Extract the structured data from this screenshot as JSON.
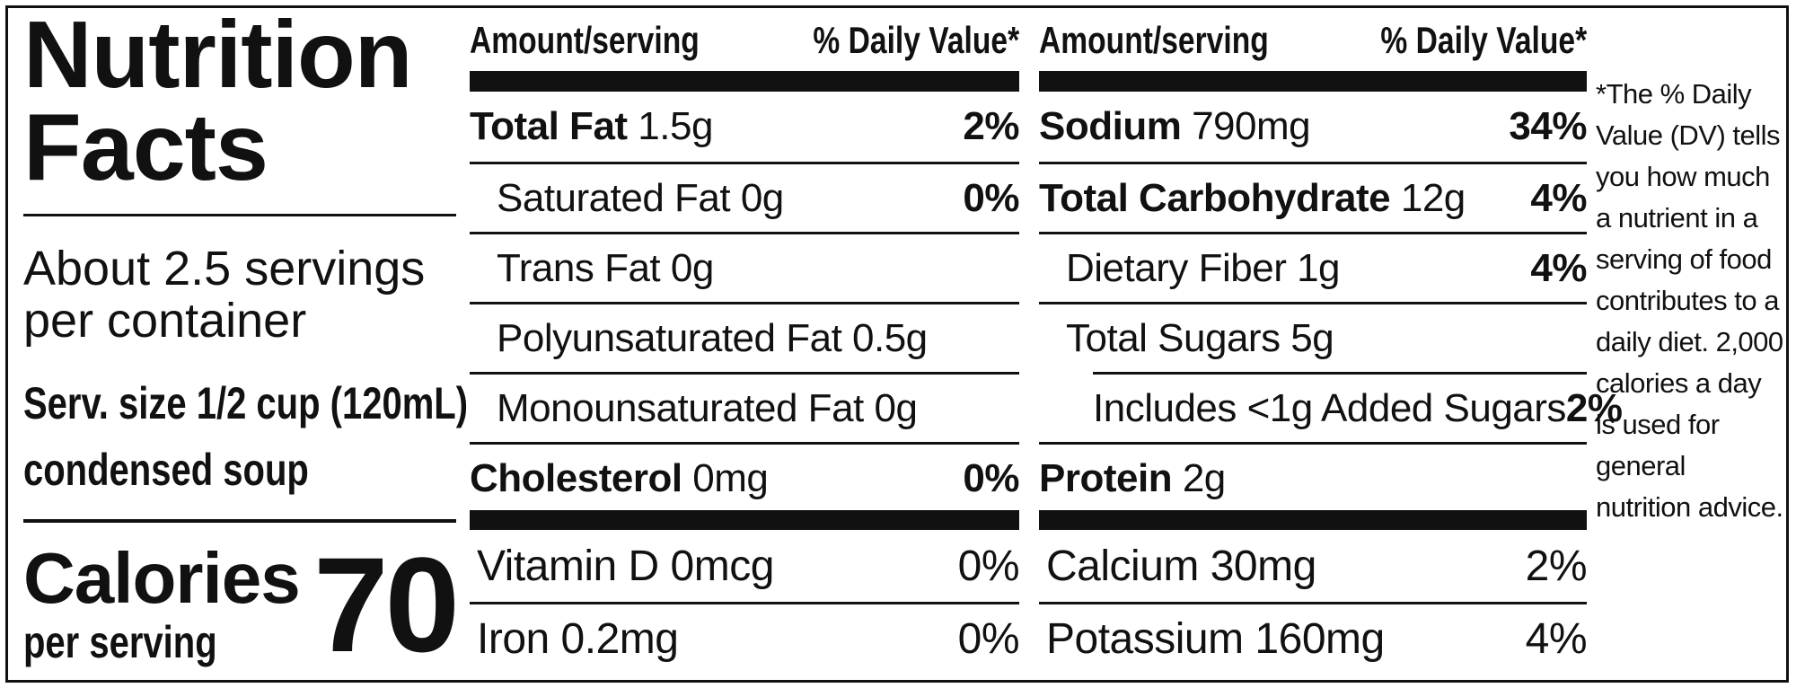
{
  "title": "Nutrition Facts",
  "servings": "About 2.5 servings per container",
  "serving_size": "Serv. size 1/2 cup (120mL)",
  "serving_note": "condensed soup",
  "calories_label": "Calories",
  "calories_sub": "per serving",
  "calories": "70",
  "header": {
    "amount": "Amount/serving",
    "dv": "% Daily Value*"
  },
  "left_rows": [
    {
      "name": "Total Fat",
      "amount": "1.5g",
      "dv": "2%",
      "bold": true,
      "indent": 0
    },
    {
      "name": "Saturated Fat 0g",
      "dv": "0%",
      "bold": false,
      "indent": 1
    },
    {
      "name": "Trans Fat 0g",
      "bold": false,
      "indent": 1
    },
    {
      "name": "Polyunsaturated Fat 0.5g",
      "bold": false,
      "indent": 1
    },
    {
      "name": "Monounsaturated Fat 0g",
      "bold": false,
      "indent": 1
    },
    {
      "name": "Cholesterol",
      "amount": "0mg",
      "dv": "0%",
      "bold": true,
      "indent": 0
    }
  ],
  "right_rows": [
    {
      "name": "Sodium",
      "amount": "790mg",
      "dv": "34%",
      "bold": true,
      "indent": 0
    },
    {
      "name": "Total Carbohydrate",
      "amount": "12g",
      "dv": "4%",
      "bold": true,
      "indent": 0
    },
    {
      "name": "Dietary Fiber 1g",
      "dv": "4%",
      "bold": false,
      "indent": 1
    },
    {
      "name": "Total Sugars 5g",
      "bold": false,
      "indent": 1
    },
    {
      "name": "Includes <1g Added Sugars",
      "dv": "2%",
      "bold": false,
      "indent": 2
    },
    {
      "name": "Protein",
      "amount": "2g",
      "bold": true,
      "indent": 0
    }
  ],
  "left_vitamins": [
    {
      "name": "Vitamin D 0mcg",
      "dv": "0%"
    },
    {
      "name": "Iron 0.2mg",
      "dv": "0%"
    }
  ],
  "right_vitamins": [
    {
      "name": "Calcium 30mg",
      "dv": "2%"
    },
    {
      "name": "Potassium 160mg",
      "dv": "4%"
    }
  ],
  "footnote": "*The % Daily Value (DV) tells you how much a nutrient in a serving of food contributes to a daily diet. 2,000 calories a day is used for general nutrition advice."
}
